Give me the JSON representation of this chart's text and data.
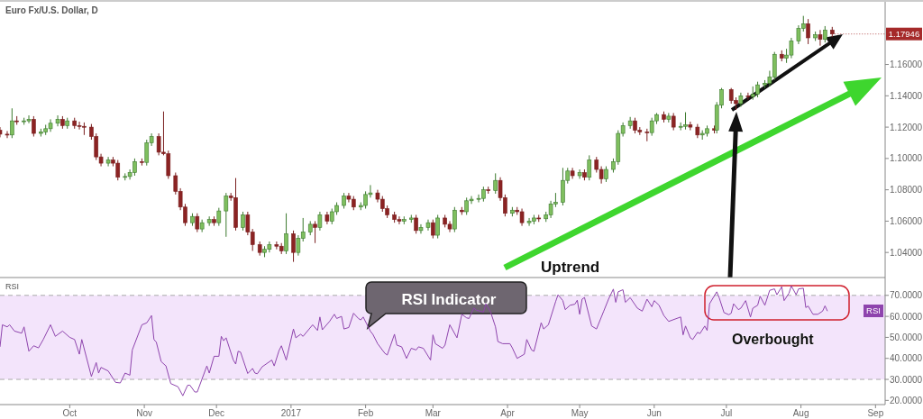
{
  "chart_data": [
    {
      "type": "candlestick",
      "title": "Euro Fx/U.S. Dollar, D",
      "xlim": [
        "2016-09-02",
        "2017-09-05"
      ],
      "ylim": [
        1.024,
        1.2
      ],
      "tick_labels": "y",
      "yticks": [
        {
          "value": 1.04,
          "label": "1.04000"
        },
        {
          "value": 1.06,
          "label": "1.06000"
        },
        {
          "value": 1.08,
          "label": "1.08000"
        },
        {
          "value": 1.1,
          "label": "1.10000"
        },
        {
          "value": 1.12,
          "label": "1.12000"
        },
        {
          "value": 1.14,
          "label": "1.14000"
        },
        {
          "value": 1.16,
          "label": "1.16000"
        }
      ],
      "annotations": [
        "Uptrend",
        {
          "text": "1.17946",
          "x": "2017-08-14",
          "y": 1.17946
        }
      ],
      "x": [
        "2016-09-02",
        "2016-09-05",
        "2016-09-07",
        "2016-09-09",
        "2016-09-12",
        "2016-09-14",
        "2016-09-16",
        "2016-09-19",
        "2016-09-21",
        "2016-09-23",
        "2016-09-26",
        "2016-09-28",
        "2016-09-30",
        "2016-10-03",
        "2016-10-05",
        "2016-10-07",
        "2016-10-10",
        "2016-10-12",
        "2016-10-14",
        "2016-10-17",
        "2016-10-19",
        "2016-10-21",
        "2016-10-24",
        "2016-10-26",
        "2016-10-28",
        "2016-10-31",
        "2016-11-02",
        "2016-11-04",
        "2016-11-07",
        "2016-11-09",
        "2016-11-11",
        "2016-11-14",
        "2016-11-16",
        "2016-11-18",
        "2016-11-21",
        "2016-11-23",
        "2016-11-25",
        "2016-11-28",
        "2016-11-30",
        "2016-12-02",
        "2016-12-05",
        "2016-12-07",
        "2016-12-09",
        "2016-12-12",
        "2016-12-14",
        "2016-12-16",
        "2016-12-19",
        "2016-12-21",
        "2016-12-23",
        "2016-12-26",
        "2016-12-28",
        "2016-12-30",
        "2017-01-02",
        "2017-01-04",
        "2017-01-06",
        "2017-01-09",
        "2017-01-11",
        "2017-01-13",
        "2017-01-16",
        "2017-01-18",
        "2017-01-20",
        "2017-01-23",
        "2017-01-25",
        "2017-01-27",
        "2017-01-30",
        "2017-02-01",
        "2017-02-03",
        "2017-02-06",
        "2017-02-08",
        "2017-02-10",
        "2017-02-13",
        "2017-02-15",
        "2017-02-17",
        "2017-02-20",
        "2017-02-22",
        "2017-02-24",
        "2017-02-27",
        "2017-03-01",
        "2017-03-03",
        "2017-03-06",
        "2017-03-08",
        "2017-03-10",
        "2017-03-13",
        "2017-03-15",
        "2017-03-17",
        "2017-03-20",
        "2017-03-22",
        "2017-03-24",
        "2017-03-27",
        "2017-03-29",
        "2017-03-31",
        "2017-04-03",
        "2017-04-05",
        "2017-04-07",
        "2017-04-10",
        "2017-04-12",
        "2017-04-14",
        "2017-04-17",
        "2017-04-19",
        "2017-04-21",
        "2017-04-24",
        "2017-04-26",
        "2017-04-28",
        "2017-05-01",
        "2017-05-03",
        "2017-05-05",
        "2017-05-08",
        "2017-05-10",
        "2017-05-12",
        "2017-05-15",
        "2017-05-17",
        "2017-05-19",
        "2017-05-22",
        "2017-05-24",
        "2017-05-26",
        "2017-05-29",
        "2017-05-31",
        "2017-06-02",
        "2017-06-05",
        "2017-06-07",
        "2017-06-09",
        "2017-06-12",
        "2017-06-14",
        "2017-06-16",
        "2017-06-19",
        "2017-06-21",
        "2017-06-23",
        "2017-06-26",
        "2017-06-27",
        "2017-06-29",
        "2017-07-03",
        "2017-07-05",
        "2017-07-07",
        "2017-07-10",
        "2017-07-12",
        "2017-07-14",
        "2017-07-17",
        "2017-07-19",
        "2017-07-21",
        "2017-07-24",
        "2017-07-26",
        "2017-07-28",
        "2017-07-31",
        "2017-08-02",
        "2017-08-04",
        "2017-08-07",
        "2017-08-09",
        "2017-08-11",
        "2017-08-14"
      ],
      "ohlc": [
        [
          1.118,
          1.12,
          1.1135,
          1.1155
        ],
        [
          1.1155,
          1.1175,
          1.113,
          1.115
        ],
        [
          1.115,
          1.132,
          1.113,
          1.124
        ],
        [
          1.124,
          1.127,
          1.1215,
          1.1235
        ],
        [
          1.1235,
          1.126,
          1.1215,
          1.124
        ],
        [
          1.124,
          1.1275,
          1.1225,
          1.125
        ],
        [
          1.125,
          1.127,
          1.114,
          1.116
        ],
        [
          1.116,
          1.119,
          1.114,
          1.117
        ],
        [
          1.117,
          1.1215,
          1.115,
          1.119
        ],
        [
          1.119,
          1.125,
          1.117,
          1.1225
        ],
        [
          1.1225,
          1.1275,
          1.1205,
          1.125
        ],
        [
          1.125,
          1.127,
          1.119,
          1.121
        ],
        [
          1.121,
          1.126,
          1.119,
          1.124
        ],
        [
          1.124,
          1.126,
          1.119,
          1.121
        ],
        [
          1.121,
          1.1235,
          1.1185,
          1.1205
        ],
        [
          1.1205,
          1.123,
          1.115,
          1.12
        ],
        [
          1.12,
          1.122,
          1.112,
          1.114
        ],
        [
          1.114,
          1.116,
          1.099,
          1.101
        ],
        [
          1.101,
          1.103,
          1.095,
          1.097
        ],
        [
          1.097,
          1.101,
          1.095,
          1.099
        ],
        [
          1.099,
          1.101,
          1.095,
          1.097
        ],
        [
          1.097,
          1.099,
          1.086,
          1.088
        ],
        [
          1.088,
          1.0905,
          1.086,
          1.0885
        ],
        [
          1.0885,
          1.093,
          1.0865,
          1.091
        ],
        [
          1.091,
          1.1,
          1.089,
          1.098
        ],
        [
          1.098,
          1.1,
          1.0955,
          1.0975
        ],
        [
          1.0975,
          1.112,
          1.0955,
          1.11
        ],
        [
          1.11,
          1.116,
          1.108,
          1.114
        ],
        [
          1.114,
          1.116,
          1.102,
          1.104
        ],
        [
          1.104,
          1.13,
          1.102,
          1.103
        ],
        [
          1.103,
          1.105,
          1.087,
          1.089
        ],
        [
          1.089,
          1.091,
          1.077,
          1.079
        ],
        [
          1.079,
          1.081,
          1.067,
          1.069
        ],
        [
          1.069,
          1.071,
          1.057,
          1.059
        ],
        [
          1.059,
          1.065,
          1.057,
          1.063
        ],
        [
          1.063,
          1.065,
          1.053,
          1.055
        ],
        [
          1.055,
          1.061,
          1.053,
          1.059
        ],
        [
          1.059,
          1.063,
          1.057,
          1.061
        ],
        [
          1.061,
          1.063,
          1.057,
          1.059
        ],
        [
          1.059,
          1.0685,
          1.057,
          1.0665
        ],
        [
          1.0665,
          1.078,
          1.05,
          1.076
        ],
        [
          1.076,
          1.078,
          1.073,
          1.075
        ],
        [
          1.075,
          1.0875,
          1.054,
          1.056
        ],
        [
          1.056,
          1.066,
          1.054,
          1.064
        ],
        [
          1.064,
          1.066,
          1.051,
          1.053
        ],
        [
          1.053,
          1.055,
          1.041,
          1.045
        ],
        [
          1.045,
          1.047,
          1.038,
          1.04
        ],
        [
          1.04,
          1.044,
          1.037,
          1.042
        ],
        [
          1.042,
          1.047,
          1.04,
          1.045
        ],
        [
          1.045,
          1.047,
          1.042,
          1.044
        ],
        [
          1.044,
          1.046,
          1.039,
          1.041
        ],
        [
          1.041,
          1.065,
          1.039,
          1.052
        ],
        [
          1.052,
          1.054,
          1.034,
          1.04
        ],
        [
          1.04,
          1.051,
          1.038,
          1.049
        ],
        [
          1.049,
          1.062,
          1.047,
          1.053
        ],
        [
          1.053,
          1.06,
          1.051,
          1.058
        ],
        [
          1.058,
          1.06,
          1.046,
          1.056
        ],
        [
          1.056,
          1.066,
          1.054,
          1.064
        ],
        [
          1.064,
          1.066,
          1.058,
          1.06
        ],
        [
          1.06,
          1.068,
          1.058,
          1.066
        ],
        [
          1.066,
          1.072,
          1.064,
          1.07
        ],
        [
          1.07,
          1.078,
          1.068,
          1.076
        ],
        [
          1.076,
          1.078,
          1.072,
          1.074
        ],
        [
          1.074,
          1.076,
          1.067,
          1.069
        ],
        [
          1.069,
          1.072,
          1.067,
          1.07
        ],
        [
          1.07,
          1.079,
          1.068,
          1.077
        ],
        [
          1.077,
          1.083,
          1.075,
          1.078
        ],
        [
          1.078,
          1.08,
          1.072,
          1.074
        ],
        [
          1.074,
          1.076,
          1.066,
          1.068
        ],
        [
          1.068,
          1.07,
          1.062,
          1.064
        ],
        [
          1.064,
          1.066,
          1.059,
          1.061
        ],
        [
          1.061,
          1.063,
          1.058,
          1.06
        ],
        [
          1.06,
          1.063,
          1.058,
          1.061
        ],
        [
          1.061,
          1.064,
          1.059,
          1.062
        ],
        [
          1.062,
          1.064,
          1.052,
          1.054
        ],
        [
          1.054,
          1.058,
          1.052,
          1.056
        ],
        [
          1.056,
          1.061,
          1.054,
          1.059
        ],
        [
          1.059,
          1.061,
          1.049,
          1.051
        ],
        [
          1.051,
          1.064,
          1.049,
          1.062
        ],
        [
          1.062,
          1.064,
          1.056,
          1.058
        ],
        [
          1.058,
          1.06,
          1.053,
          1.055
        ],
        [
          1.055,
          1.069,
          1.053,
          1.067
        ],
        [
          1.067,
          1.069,
          1.064,
          1.066
        ],
        [
          1.066,
          1.075,
          1.064,
          1.073
        ],
        [
          1.073,
          1.076,
          1.071,
          1.074
        ],
        [
          1.074,
          1.077,
          1.072,
          1.0745
        ],
        [
          1.0745,
          1.082,
          1.0725,
          1.08
        ],
        [
          1.08,
          1.082,
          1.0775,
          1.0795
        ],
        [
          1.0795,
          1.0905,
          1.0775,
          1.086
        ],
        [
          1.086,
          1.088,
          1.073,
          1.075
        ],
        [
          1.075,
          1.077,
          1.063,
          1.065
        ],
        [
          1.065,
          1.069,
          1.063,
          1.067
        ],
        [
          1.067,
          1.069,
          1.064,
          1.066
        ],
        [
          1.066,
          1.068,
          1.057,
          1.059
        ],
        [
          1.059,
          1.062,
          1.057,
          1.06
        ],
        [
          1.06,
          1.064,
          1.058,
          1.062
        ],
        [
          1.062,
          1.064,
          1.0595,
          1.0615
        ],
        [
          1.0615,
          1.066,
          1.0595,
          1.064
        ],
        [
          1.064,
          1.073,
          1.062,
          1.071
        ],
        [
          1.071,
          1.078,
          1.069,
          1.072
        ],
        [
          1.072,
          1.094,
          1.07,
          1.086
        ],
        [
          1.086,
          1.094,
          1.084,
          1.092
        ],
        [
          1.092,
          1.094,
          1.087,
          1.089
        ],
        [
          1.089,
          1.093,
          1.087,
          1.091
        ],
        [
          1.091,
          1.093,
          1.086,
          1.088
        ],
        [
          1.088,
          1.102,
          1.086,
          1.099
        ],
        [
          1.099,
          1.101,
          1.091,
          1.093
        ],
        [
          1.093,
          1.095,
          1.084,
          1.087
        ],
        [
          1.087,
          1.095,
          1.085,
          1.093
        ],
        [
          1.093,
          1.1,
          1.091,
          1.098
        ],
        [
          1.098,
          1.118,
          1.096,
          1.116
        ],
        [
          1.116,
          1.123,
          1.114,
          1.121
        ],
        [
          1.121,
          1.1265,
          1.119,
          1.124
        ],
        [
          1.124,
          1.126,
          1.116,
          1.118
        ],
        [
          1.118,
          1.12,
          1.115,
          1.117
        ],
        [
          1.117,
          1.119,
          1.111,
          1.1165
        ],
        [
          1.1165,
          1.126,
          1.1145,
          1.124
        ],
        [
          1.124,
          1.129,
          1.122,
          1.128
        ],
        [
          1.128,
          1.13,
          1.123,
          1.125
        ],
        [
          1.125,
          1.129,
          1.123,
          1.127
        ],
        [
          1.127,
          1.129,
          1.118,
          1.12
        ],
        [
          1.12,
          1.123,
          1.118,
          1.1205
        ],
        [
          1.1205,
          1.1295,
          1.1185,
          1.1215
        ],
        [
          1.1215,
          1.1235,
          1.118,
          1.12
        ],
        [
          1.12,
          1.122,
          1.113,
          1.115
        ],
        [
          1.115,
          1.118,
          1.112,
          1.116
        ],
        [
          1.116,
          1.121,
          1.114,
          1.119
        ],
        [
          1.119,
          1.121,
          1.116,
          1.118
        ],
        [
          1.118,
          1.136,
          1.116,
          1.134
        ],
        [
          1.134,
          1.145,
          1.132,
          1.144
        ],
        [
          1.144,
          1.145,
          1.135,
          1.137
        ],
        [
          1.137,
          1.139,
          1.131,
          1.135
        ],
        [
          1.135,
          1.142,
          1.133,
          1.14
        ],
        [
          1.14,
          1.142,
          1.1375,
          1.1395
        ],
        [
          1.1395,
          1.146,
          1.1375,
          1.141
        ],
        [
          1.141,
          1.149,
          1.139,
          1.147
        ],
        [
          1.147,
          1.15,
          1.145,
          1.148
        ],
        [
          1.148,
          1.156,
          1.146,
          1.152
        ],
        [
          1.152,
          1.168,
          1.15,
          1.1665
        ],
        [
          1.1665,
          1.169,
          1.162,
          1.164
        ],
        [
          1.164,
          1.17,
          1.161,
          1.166
        ],
        [
          1.166,
          1.177,
          1.164,
          1.175
        ],
        [
          1.175,
          1.185,
          1.173,
          1.183
        ],
        [
          1.183,
          1.191,
          1.181,
          1.186
        ],
        [
          1.186,
          1.189,
          1.173,
          1.177
        ],
        [
          1.177,
          1.181,
          1.175,
          1.179
        ],
        [
          1.179,
          1.182,
          1.172,
          1.176
        ],
        [
          1.176,
          1.1845,
          1.174,
          1.182
        ],
        [
          1.182,
          1.184,
          1.1775,
          1.17946
        ]
      ]
    },
    {
      "type": "line",
      "title": "RSI",
      "xlim": [
        "2016-09-02",
        "2017-09-05"
      ],
      "ylim": [
        18,
        78.5
      ],
      "xticks": [
        {
          "value": "2016-10-01",
          "label": "Oct"
        },
        {
          "value": "2016-11-01",
          "label": "Nov"
        },
        {
          "value": "2016-12-01",
          "label": "Dec"
        },
        {
          "value": "2017-01-01",
          "label": "2017"
        },
        {
          "value": "2017-02-01",
          "label": "Feb"
        },
        {
          "value": "2017-03-01",
          "label": "Mar"
        },
        {
          "value": "2017-04-01",
          "label": "Apr"
        },
        {
          "value": "2017-05-01",
          "label": "May"
        },
        {
          "value": "2017-06-01",
          "label": "Jun"
        },
        {
          "value": "2017-07-01",
          "label": "Jul"
        },
        {
          "value": "2017-08-01",
          "label": "Aug"
        },
        {
          "value": "2017-09-01",
          "label": "Sep"
        }
      ],
      "yticks": [
        {
          "value": 20,
          "label": "20.0000"
        },
        {
          "value": 30,
          "label": "30.0000"
        },
        {
          "value": 40,
          "label": "40.0000"
        },
        {
          "value": 50,
          "label": "50.0000"
        },
        {
          "value": 60,
          "label": "60.0000"
        },
        {
          "value": 70,
          "label": "70.0000"
        }
      ],
      "bands": [
        {
          "axis": "y",
          "from": 30,
          "to": 70,
          "color": "#f3e4fb"
        }
      ],
      "ref_lines": [
        {
          "axis": "y",
          "value": 70,
          "color": "#aaaaaa",
          "line_style": "dashed"
        },
        {
          "axis": "y",
          "value": 30,
          "color": "#aaaaaa",
          "line_style": "dashed"
        }
      ],
      "annotations": [
        "RSI Indicator",
        "Overbought"
      ],
      "series": [
        {
          "name": "RSI",
          "color": "#8e44ad",
          "x": [
            "2016-09-02",
            "2016-09-03",
            "2016-09-05",
            "2016-09-06",
            "2016-09-08",
            "2016-09-11",
            "2016-09-12",
            "2016-09-14",
            "2016-09-16",
            "2016-09-18",
            "2016-09-20",
            "2016-09-23",
            "2016-09-25",
            "2016-09-28",
            "2016-10-01",
            "2016-10-03",
            "2016-10-05",
            "2016-10-06",
            "2016-10-10",
            "2016-10-12",
            "2016-10-13",
            "2016-10-14",
            "2016-10-17",
            "2016-10-20",
            "2016-10-22",
            "2016-10-24",
            "2016-10-26",
            "2016-10-27",
            "2016-10-31",
            "2016-11-02",
            "2016-11-04",
            "2016-11-05",
            "2016-11-06",
            "2016-11-08",
            "2016-11-10",
            "2016-11-12",
            "2016-11-15",
            "2016-11-17",
            "2016-11-19",
            "2016-11-20",
            "2016-11-22",
            "2016-11-23",
            "2016-11-27",
            "2016-11-28",
            "2016-11-30",
            "2016-12-02",
            "2016-12-03",
            "2016-12-04",
            "2016-12-05",
            "2016-12-08",
            "2016-12-09",
            "2016-12-10",
            "2016-12-11",
            "2016-12-14",
            "2016-12-16",
            "2016-12-17",
            "2016-12-18",
            "2016-12-20",
            "2016-12-24",
            "2016-12-25",
            "2016-12-27",
            "2016-12-28",
            "2016-12-30",
            "2017-01-02",
            "2017-01-03",
            "2017-01-05",
            "2017-01-06",
            "2017-01-10",
            "2017-01-12",
            "2017-01-13",
            "2017-01-14",
            "2017-01-17",
            "2017-01-19",
            "2017-01-20",
            "2017-01-22",
            "2017-01-23",
            "2017-01-25",
            "2017-01-27",
            "2017-01-29",
            "2017-01-30",
            "2017-01-31",
            "2017-02-03",
            "2017-02-04",
            "2017-02-06",
            "2017-02-09",
            "2017-02-10",
            "2017-02-13",
            "2017-02-14",
            "2017-02-16",
            "2017-02-18",
            "2017-02-20",
            "2017-02-22",
            "2017-02-23",
            "2017-02-25",
            "2017-02-28",
            "2017-03-01",
            "2017-03-02",
            "2017-03-05",
            "2017-03-06",
            "2017-03-08",
            "2017-03-11",
            "2017-03-13",
            "2017-03-15",
            "2017-03-16",
            "2017-03-18",
            "2017-03-19",
            "2017-03-22",
            "2017-03-23",
            "2017-03-25",
            "2017-03-27",
            "2017-03-28",
            "2017-03-30",
            "2017-04-02",
            "2017-04-03",
            "2017-04-05",
            "2017-04-08",
            "2017-04-09",
            "2017-04-11",
            "2017-04-12",
            "2017-04-15",
            "2017-04-16",
            "2017-04-18",
            "2017-04-21",
            "2017-04-22",
            "2017-04-24",
            "2017-04-25",
            "2017-04-27",
            "2017-04-29",
            "2017-04-30",
            "2017-05-01",
            "2017-05-02",
            "2017-05-03",
            "2017-05-06",
            "2017-05-08",
            "2017-05-11",
            "2017-05-13",
            "2017-05-15",
            "2017-05-16",
            "2017-05-17",
            "2017-05-19",
            "2017-05-20",
            "2017-05-22",
            "2017-05-25",
            "2017-05-27",
            "2017-05-28",
            "2017-05-29",
            "2017-05-31",
            "2017-06-01",
            "2017-06-03",
            "2017-06-05",
            "2017-06-07",
            "2017-06-12",
            "2017-06-13",
            "2017-06-14",
            "2017-06-16",
            "2017-06-17",
            "2017-06-19",
            "2017-06-20",
            "2017-06-22",
            "2017-06-23",
            "2017-06-24",
            "2017-06-27",
            "2017-06-28",
            "2017-06-30",
            "2017-07-02",
            "2017-07-03",
            "2017-07-04",
            "2017-07-06",
            "2017-07-07",
            "2017-07-09",
            "2017-07-11",
            "2017-07-12",
            "2017-07-14",
            "2017-07-15",
            "2017-07-17",
            "2017-07-19",
            "2017-07-21",
            "2017-07-22",
            "2017-07-24",
            "2017-07-25",
            "2017-07-27",
            "2017-07-28",
            "2017-07-30",
            "2017-07-31",
            "2017-08-02",
            "2017-08-03",
            "2017-08-04",
            "2017-08-06",
            "2017-08-08",
            "2017-08-10",
            "2017-08-11",
            "2017-08-12"
          ],
          "values": [
            45.5,
            56,
            55,
            56,
            53,
            52,
            55,
            43.4,
            46,
            45,
            49,
            56,
            50.5,
            53,
            50,
            49,
            42,
            49,
            31.4,
            38,
            33,
            35.7,
            34,
            28.6,
            28.3,
            33,
            32,
            44,
            56,
            56.9,
            60.4,
            49,
            47.7,
            38.5,
            36.4,
            28,
            26.5,
            22.2,
            27.2,
            27.2,
            24,
            24,
            36.4,
            33,
            41,
            41,
            50.5,
            48.4,
            49.8,
            39.2,
            37.3,
            43.4,
            43,
            32.8,
            35.2,
            33,
            32.7,
            36,
            39.2,
            36.4,
            43.7,
            46,
            39.2,
            54,
            49.8,
            51.5,
            50.5,
            56,
            53.3,
            59.7,
            53.6,
            57.6,
            61,
            59,
            60,
            54,
            54.7,
            61.5,
            59,
            58.3,
            59.7,
            52.9,
            51.5,
            47,
            42.4,
            41.6,
            51.5,
            46.3,
            45.5,
            40,
            44.8,
            44,
            45.5,
            44.8,
            39.2,
            51.2,
            47,
            44.8,
            46.3,
            56,
            49.8,
            61,
            59.3,
            59,
            64,
            63,
            62,
            66,
            62,
            55,
            48,
            47,
            47,
            45,
            40,
            42,
            49,
            44,
            43.4,
            57,
            54,
            56,
            67,
            70.3,
            67.5,
            63.2,
            65.3,
            65.8,
            67.7,
            61,
            68.2,
            69,
            55.4,
            54,
            62.5,
            68.2,
            73,
            66.7,
            71.7,
            72.7,
            66.7,
            68.9,
            63.9,
            62.5,
            65.3,
            68.2,
            64.6,
            67.5,
            65.3,
            60.4,
            57.6,
            59.7,
            51.2,
            55.4,
            49.8,
            49,
            52.4,
            51.8,
            55.4,
            53.3,
            66,
            71.7,
            68.9,
            61.8,
            60.8,
            61.5,
            66,
            63.2,
            63.9,
            67.5,
            59.7,
            63.9,
            65.3,
            69.6,
            65.3,
            72.4,
            73.1,
            70.3,
            74.1,
            67.5,
            71,
            74.5,
            70.3,
            73.1,
            73.4,
            64.2,
            64.9,
            61,
            61,
            62.5,
            65,
            62.5
          ]
        }
      ]
    }
  ]
}
